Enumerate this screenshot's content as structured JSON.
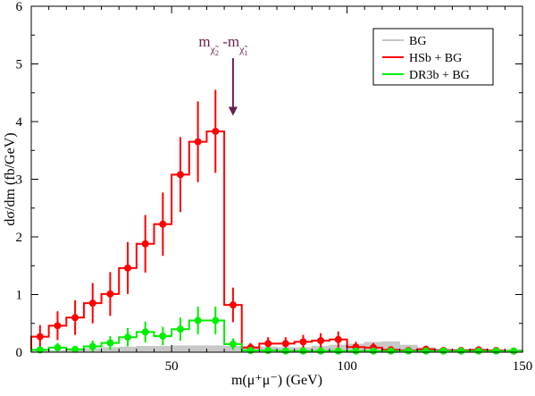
{
  "chart_data": {
    "type": "step-histogram",
    "xlabel": "m(μ⁺μ⁻) (GeV)",
    "ylabel": "dσ/dm (fb/GeV)",
    "xlim": [
      10,
      150
    ],
    "ylim": [
      0,
      6
    ],
    "x_ticks": [
      50,
      100,
      150
    ],
    "y_ticks": [
      0,
      1,
      2,
      3,
      4,
      5,
      6
    ],
    "grid": false,
    "legend_position": "top-right",
    "bin_width": 5,
    "bin_edges_start": 10,
    "annotation": {
      "text": "m",
      "sub1": "χ̃",
      "sub1_index": "2",
      "sep": " -m",
      "sub2": "χ̃",
      "sub2_index": "1",
      "arrow_x": 67.5,
      "arrow_from_y": 5.1,
      "arrow_to_y": 4.1
    },
    "series": [
      {
        "name": "BG",
        "color": "#c8c8c8",
        "style": "filled-step",
        "values": [
          0.02,
          0.03,
          0.05,
          0.06,
          0.08,
          0.09,
          0.1,
          0.1,
          0.11,
          0.11,
          0.11,
          0.1,
          0.1,
          0.09,
          0.08,
          0.08,
          0.1,
          0.12,
          0.14,
          0.17,
          0.18,
          0.12,
          0.08,
          0.06,
          0.05,
          0.04,
          0.04,
          0.04
        ]
      },
      {
        "name": "HSb + BG",
        "color": "#ff0000",
        "style": "step-with-errors",
        "values": [
          0.27,
          0.46,
          0.6,
          0.85,
          1.01,
          1.46,
          1.88,
          2.22,
          3.08,
          3.65,
          3.83,
          0.82,
          0.08,
          0.15,
          0.15,
          0.18,
          0.2,
          0.22,
          0.09,
          0.08,
          0.04,
          0.03,
          0.05,
          0.03,
          0.03,
          0.04,
          0.03,
          0.02
        ],
        "errors": [
          0.2,
          0.25,
          0.3,
          0.35,
          0.38,
          0.45,
          0.5,
          0.55,
          0.65,
          0.7,
          0.72,
          0.3,
          0.08,
          0.11,
          0.11,
          0.12,
          0.13,
          0.14,
          0.09,
          0.08,
          0.06,
          0.05,
          0.06,
          0.05,
          0.05,
          0.06,
          0.05,
          0.04
        ]
      },
      {
        "name": "DR3b + BG",
        "color": "#00ee00",
        "style": "step-with-errors",
        "values": [
          0.04,
          0.08,
          0.05,
          0.1,
          0.16,
          0.26,
          0.35,
          0.28,
          0.4,
          0.55,
          0.55,
          0.14,
          0.03,
          0.03,
          0.02,
          0.02,
          0.02,
          0.02,
          0.02,
          0.02,
          0.02,
          0.02,
          0.02,
          0.02,
          0.02,
          0.02,
          0.02,
          0.02
        ],
        "errors": [
          0.05,
          0.08,
          0.06,
          0.1,
          0.12,
          0.16,
          0.18,
          0.16,
          0.2,
          0.24,
          0.24,
          0.1,
          0.03,
          0.03,
          0.02,
          0.02,
          0.02,
          0.02,
          0.02,
          0.02,
          0.02,
          0.02,
          0.02,
          0.02,
          0.02,
          0.02,
          0.02,
          0.02
        ]
      }
    ]
  }
}
